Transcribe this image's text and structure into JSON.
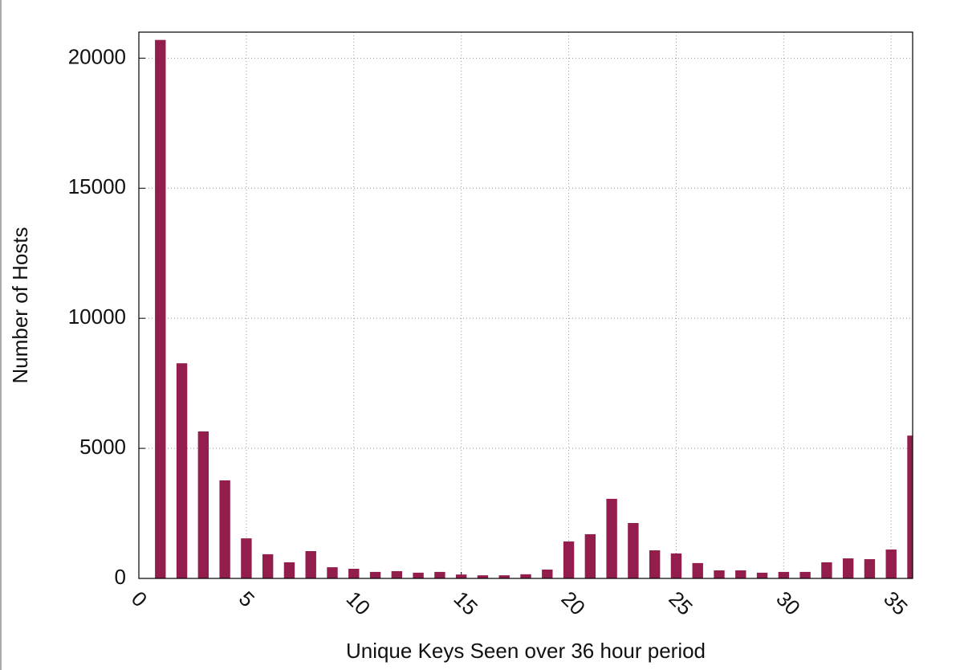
{
  "chart_data": {
    "type": "bar",
    "xlabel": "Unique Keys Seen over 36 hour period",
    "ylabel": "Number of Hosts",
    "x": [
      1,
      2,
      3,
      4,
      5,
      6,
      7,
      8,
      9,
      10,
      11,
      12,
      13,
      14,
      15,
      16,
      17,
      18,
      19,
      20,
      21,
      22,
      23,
      24,
      25,
      26,
      27,
      28,
      29,
      30,
      31,
      32,
      33,
      34,
      35,
      36
    ],
    "values": [
      20700,
      8270,
      5650,
      3770,
      1540,
      930,
      620,
      1050,
      430,
      370,
      250,
      280,
      220,
      250,
      150,
      120,
      120,
      160,
      340,
      1420,
      1700,
      3060,
      2130,
      1080,
      960,
      590,
      310,
      310,
      220,
      250,
      250,
      620,
      770,
      740,
      1110,
      5490
    ],
    "color": "#931e4e",
    "xlim": [
      0,
      36
    ],
    "xticks": [
      0,
      5,
      10,
      15,
      20,
      25,
      30,
      35
    ],
    "ylim": [
      0,
      21000
    ],
    "yticks": [
      0,
      5000,
      10000,
      15000,
      20000
    ],
    "grid": true
  }
}
